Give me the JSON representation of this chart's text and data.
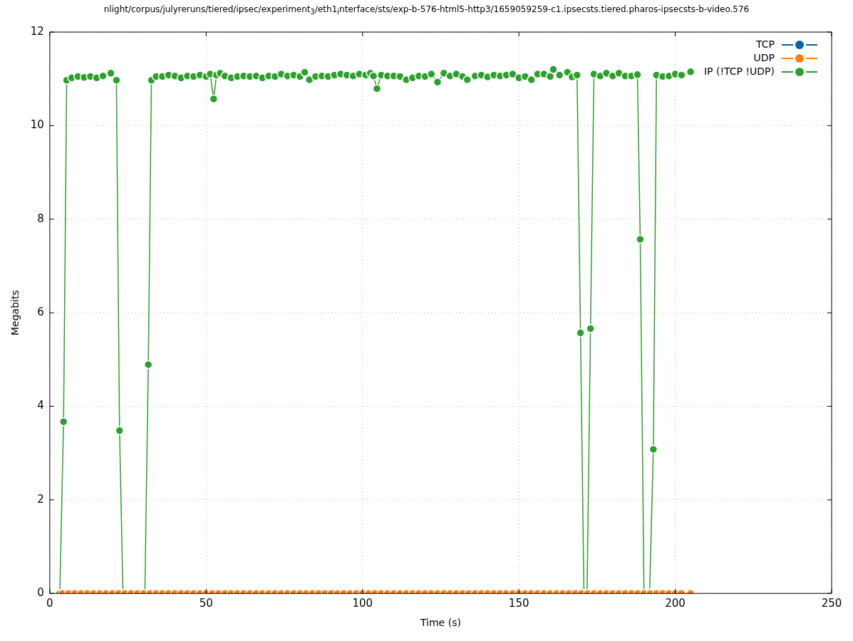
{
  "chart_data": {
    "type": "line",
    "title": "nlight/corpus/julyreruns/tiered/ipsec/experiment$_{3}$/eth1$_{i}$nterface/sts/exp-b-576-html5-http3/1659059259-c1.ipsecsts.tiered.pharos-ipsecsts-b-video.576",
    "xlabel": "Time (s)",
    "ylabel": "Megabits",
    "xlim": [
      0,
      250
    ],
    "xticks": [
      0,
      50,
      100,
      150,
      200,
      250
    ],
    "ylim": [
      0,
      12
    ],
    "yticks": [
      0,
      2,
      4,
      6,
      8,
      10,
      12
    ],
    "grid": true,
    "legend": "top right",
    "marker": "circle",
    "line_style": "solid",
    "series": [
      {
        "name": "TCP",
        "color": "#0060ad"
      },
      {
        "name": "UDP",
        "color": "#ff7f0e",
        "x": [
          4,
          6,
          8,
          10,
          12,
          14,
          16,
          18,
          20,
          22,
          24,
          26,
          28,
          30,
          32,
          34,
          36,
          38,
          40,
          42,
          44,
          46,
          48,
          50,
          52,
          54,
          56,
          58,
          60,
          62,
          64,
          66,
          68,
          70,
          72,
          74,
          76,
          78,
          80,
          82,
          84,
          86,
          88,
          90,
          92,
          94,
          96,
          98,
          100,
          102,
          104,
          106,
          108,
          110,
          112,
          114,
          116,
          118,
          120,
          122,
          124,
          126,
          128,
          130,
          132,
          134,
          136,
          138,
          140,
          142,
          144,
          146,
          148,
          150,
          152,
          154,
          156,
          158,
          160,
          162,
          164,
          166,
          168,
          170,
          172,
          174,
          176,
          178,
          180,
          182,
          184,
          186,
          188,
          190,
          192,
          194,
          196,
          198,
          200,
          202,
          204.9
        ],
        "values": [
          0,
          0,
          0,
          0,
          0,
          0,
          0,
          0,
          0,
          0,
          0,
          0,
          0,
          0,
          0,
          0,
          0,
          0,
          0,
          0,
          0,
          0,
          0,
          0,
          0,
          0,
          0,
          0,
          0,
          0,
          0,
          0,
          0,
          0,
          0,
          0,
          0,
          0,
          0,
          0,
          0,
          0,
          0,
          0,
          0,
          0,
          0,
          0,
          0,
          0,
          0,
          0,
          0,
          0,
          0,
          0,
          0,
          0,
          0,
          0,
          0,
          0,
          0,
          0,
          0,
          0,
          0,
          0,
          0,
          0,
          0,
          0,
          0,
          0,
          0,
          0,
          0,
          0,
          0,
          0,
          0,
          0,
          0,
          0,
          0,
          0,
          0,
          0,
          0,
          0,
          0,
          0,
          0,
          0,
          0,
          0,
          0,
          0,
          0,
          0,
          0
        ]
      },
      {
        "name": "IP (!TCP  !UDP)",
        "color": "#2ca02c",
        "x": [
          3.2,
          4.4,
          5.4,
          7,
          9,
          11,
          13,
          15,
          17,
          19.5,
          21.3,
          22.3,
          23.4,
          25,
          27,
          29,
          30.4,
          31.5,
          32.5,
          34,
          36,
          38,
          40,
          42,
          44,
          46,
          48,
          50,
          51.3,
          52.4,
          53.3,
          54.5,
          56,
          58,
          60,
          62,
          64,
          66,
          68,
          70,
          72,
          74,
          76,
          78,
          80,
          81.5,
          83,
          85,
          87,
          89,
          91,
          93,
          95,
          97,
          99,
          101,
          102.5,
          103.5,
          104.6,
          106,
          108,
          110,
          112,
          114,
          116,
          118,
          120,
          122,
          124,
          126,
          128,
          130,
          132,
          133.5,
          136,
          138,
          140,
          142,
          144,
          146,
          148,
          150,
          152,
          154,
          156,
          158,
          160,
          161,
          163,
          165.5,
          167,
          168.6,
          169.7,
          170.8,
          171.8,
          172.9,
          174,
          176,
          178,
          180,
          182,
          184,
          186,
          187.9,
          188.8,
          190,
          191.8,
          193,
          194,
          196,
          198,
          200,
          202,
          204.9
        ],
        "values": [
          0,
          3.67,
          10.97,
          11.02,
          11.05,
          11.03,
          11.05,
          11.02,
          11.06,
          11.12,
          10.97,
          3.48,
          0,
          0,
          0,
          0,
          0,
          4.89,
          10.97,
          11.05,
          11.05,
          11.08,
          11.06,
          11.02,
          11.06,
          11.05,
          11.08,
          11.05,
          11.1,
          10.57,
          11.08,
          11.12,
          11.06,
          11.02,
          11.05,
          11.06,
          11.05,
          11.06,
          11.02,
          11.06,
          11.05,
          11.1,
          11.06,
          11.08,
          11.05,
          11.14,
          10.98,
          11.05,
          11.06,
          11.05,
          11.08,
          11.1,
          11.08,
          11.06,
          11.1,
          11.08,
          11.12,
          11.06,
          10.79,
          11.08,
          11.06,
          11.06,
          11.05,
          10.98,
          11.02,
          11.06,
          11.05,
          11.1,
          10.93,
          11.12,
          11.06,
          11.1,
          11.05,
          10.98,
          11.06,
          11.08,
          11.04,
          11.08,
          11.06,
          11.08,
          11.1,
          11.02,
          11.05,
          10.98,
          11.1,
          11.1,
          11.05,
          11.2,
          11.08,
          11.14,
          11.04,
          11.08,
          5.57,
          0,
          0,
          5.66,
          11.1,
          11.06,
          11.12,
          11.06,
          11.12,
          11.06,
          11.06,
          11.09,
          7.57,
          0,
          0.02,
          3.08,
          11.08,
          11.05,
          11.06,
          11.1,
          11.08,
          11.15
        ]
      }
    ]
  }
}
